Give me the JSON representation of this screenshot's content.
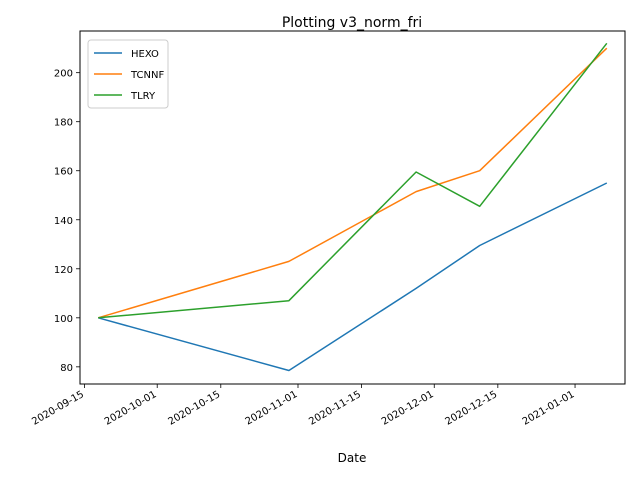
{
  "chart_data": {
    "type": "line",
    "title": "Plotting v3_norm_fri",
    "xlabel": "Date",
    "ylabel": "",
    "xlim": [
      "2020-09-14",
      "2021-01-12"
    ],
    "ylim": [
      73,
      217
    ],
    "x_ticks": [
      "2020-09-15",
      "2020-10-01",
      "2020-10-15",
      "2020-11-01",
      "2020-11-15",
      "2020-12-01",
      "2020-12-15",
      "2021-01-01"
    ],
    "y_ticks": [
      80,
      100,
      120,
      140,
      160,
      180,
      200
    ],
    "grid": false,
    "legend_position": "upper-left",
    "x": [
      "2020-09-18",
      "2020-10-30",
      "2020-11-27",
      "2020-12-11",
      "2021-01-08"
    ],
    "series": [
      {
        "name": "HEXO",
        "color": "#1f77b4",
        "values": [
          100,
          78.5,
          112,
          129.5,
          155
        ]
      },
      {
        "name": "TCNNF",
        "color": "#ff7f0e",
        "values": [
          100,
          123,
          151.5,
          160,
          210
        ]
      },
      {
        "name": "TLRY",
        "color": "#2ca02c",
        "values": [
          100,
          107,
          159.5,
          145.5,
          212
        ]
      }
    ]
  }
}
